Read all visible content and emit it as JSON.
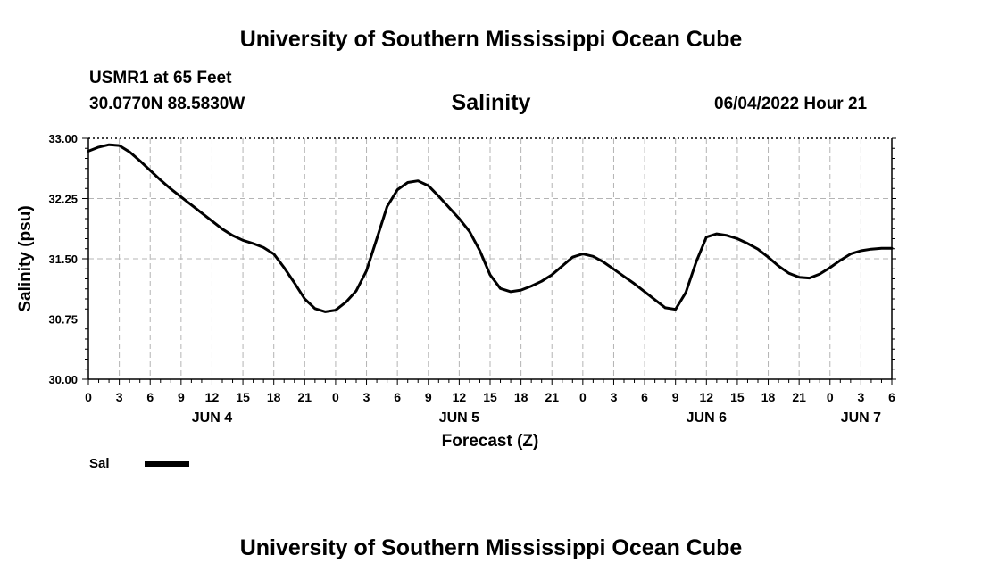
{
  "header": {
    "title_top": "University of Southern Mississippi Ocean Cube",
    "station": "USMR1 at 65 Feet",
    "coords": "30.0770N  88.5830W",
    "chart_title": "Salinity",
    "run_time": "06/04/2022 Hour 21"
  },
  "footer": {
    "title_bottom": "University of Southern Mississippi Ocean Cube"
  },
  "legend": {
    "label": "Sal",
    "color": "#000000"
  },
  "chart_data": {
    "type": "line",
    "title": "Salinity",
    "xlabel": "Forecast (Z)",
    "ylabel": "Salinity (psu)",
    "ylim": [
      30.0,
      33.0
    ],
    "xlim": [
      0,
      78
    ],
    "grid": true,
    "y_ticks": [
      "30.00",
      "30.75",
      "31.50",
      "32.25",
      "33.00"
    ],
    "x_tick_labels": [
      "0",
      "3",
      "6",
      "9",
      "12",
      "15",
      "18",
      "21",
      "0",
      "3",
      "6",
      "9",
      "12",
      "15",
      "18",
      "21",
      "0",
      "3",
      "6",
      "9",
      "12",
      "15",
      "18",
      "21",
      "0",
      "3",
      "6"
    ],
    "day_labels": [
      {
        "label": "JUN 4",
        "hour": 12
      },
      {
        "label": "JUN 5",
        "hour": 36
      },
      {
        "label": "JUN 6",
        "hour": 60
      },
      {
        "label": "JUN 7",
        "hour": 75
      }
    ],
    "series": [
      {
        "name": "Sal",
        "x": [
          0,
          1,
          2,
          3,
          4,
          5,
          6,
          7,
          8,
          9,
          10,
          11,
          12,
          13,
          14,
          15,
          16,
          17,
          18,
          19,
          20,
          21,
          22,
          23,
          24,
          25,
          26,
          27,
          28,
          29,
          30,
          31,
          32,
          33,
          34,
          35,
          36,
          37,
          38,
          39,
          40,
          41,
          42,
          43,
          44,
          45,
          46,
          47,
          48,
          49,
          50,
          51,
          52,
          53,
          54,
          55,
          56,
          57,
          58,
          59,
          60,
          61,
          62,
          63,
          64,
          65,
          66,
          67,
          68,
          69,
          70,
          71,
          72,
          73,
          74,
          75,
          76,
          77,
          78
        ],
        "values": [
          32.84,
          32.89,
          32.92,
          32.91,
          32.83,
          32.72,
          32.6,
          32.48,
          32.37,
          32.27,
          32.17,
          32.07,
          31.97,
          31.87,
          31.79,
          31.73,
          31.69,
          31.64,
          31.56,
          31.39,
          31.2,
          31.0,
          30.88,
          30.84,
          30.86,
          30.96,
          31.1,
          31.35,
          31.75,
          32.15,
          32.36,
          32.45,
          32.47,
          32.41,
          32.28,
          32.14,
          32.0,
          31.84,
          31.6,
          31.3,
          31.13,
          31.09,
          31.11,
          31.16,
          31.22,
          31.3,
          31.41,
          31.52,
          31.56,
          31.53,
          31.46,
          31.37,
          31.28,
          31.19,
          31.09,
          30.99,
          30.89,
          30.87,
          31.08,
          31.46,
          31.77,
          31.81,
          31.79,
          31.75,
          31.69,
          31.62,
          31.52,
          31.41,
          31.32,
          31.27,
          31.26,
          31.31,
          31.39,
          31.48,
          31.56,
          31.6,
          31.62,
          31.63,
          31.63
        ]
      }
    ]
  }
}
